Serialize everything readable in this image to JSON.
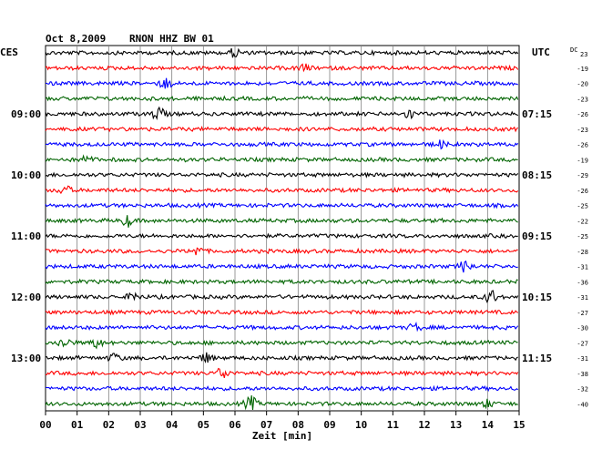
{
  "header": {
    "date": "Oct 8,2009",
    "station": "RNON HHZ BW 01",
    "left_zone": "CES",
    "right_zone": "UTC",
    "dc_label": "DC",
    "dc_first": "23"
  },
  "chart_data": {
    "type": "line",
    "title": "Oct 8,2009   RNON HHZ BW 01",
    "xlabel": "Zeit [min]",
    "xlim": [
      0,
      15
    ],
    "x_ticks": [
      "00",
      "01",
      "02",
      "03",
      "04",
      "05",
      "06",
      "07",
      "08",
      "09",
      "10",
      "11",
      "12",
      "13",
      "14",
      "15"
    ],
    "grid": true,
    "trace_colors": [
      "#000000",
      "#ff0000",
      "#0000ff",
      "#006400"
    ],
    "left_time_labels": [
      {
        "row": 4,
        "label": "09:00"
      },
      {
        "row": 8,
        "label": "10:00"
      },
      {
        "row": 12,
        "label": "11:00"
      },
      {
        "row": 16,
        "label": "12:00"
      },
      {
        "row": 20,
        "label": "13:00"
      }
    ],
    "right_time_labels": [
      {
        "row": 4,
        "label": "07:15"
      },
      {
        "row": 8,
        "label": "08:15"
      },
      {
        "row": 12,
        "label": "09:15"
      },
      {
        "row": 16,
        "label": "10:15"
      },
      {
        "row": 20,
        "label": "11:15"
      }
    ],
    "dc_offsets": [
      "-19",
      "-20",
      "-23",
      "-26",
      "-23",
      "-26",
      "-19",
      "-29",
      "-26",
      "-25",
      "-22",
      "-25",
      "-28",
      "-31",
      "-36",
      "-31",
      "-27",
      "-30",
      "-27",
      "-31",
      "-38",
      "-32",
      "-40"
    ],
    "bursts": [
      {
        "row": 0,
        "minute": 6.0,
        "amp": 5
      },
      {
        "row": 1,
        "minute": 8.2,
        "amp": 4
      },
      {
        "row": 2,
        "minute": 3.8,
        "amp": 6
      },
      {
        "row": 4,
        "minute": 3.6,
        "amp": 8
      },
      {
        "row": 4,
        "minute": 11.5,
        "amp": 5
      },
      {
        "row": 6,
        "minute": 12.5,
        "amp": 4
      },
      {
        "row": 7,
        "minute": 1.3,
        "amp": 4
      },
      {
        "row": 9,
        "minute": 0.6,
        "amp": 5
      },
      {
        "row": 11,
        "minute": 2.6,
        "amp": 6
      },
      {
        "row": 13,
        "minute": 4.8,
        "amp": 5
      },
      {
        "row": 14,
        "minute": 13.3,
        "amp": 7
      },
      {
        "row": 16,
        "minute": 2.8,
        "amp": 5
      },
      {
        "row": 16,
        "minute": 14.1,
        "amp": 8
      },
      {
        "row": 18,
        "minute": 11.7,
        "amp": 4
      },
      {
        "row": 19,
        "minute": 0.6,
        "amp": 6
      },
      {
        "row": 19,
        "minute": 1.6,
        "amp": 5
      },
      {
        "row": 20,
        "minute": 2.2,
        "amp": 5
      },
      {
        "row": 20,
        "minute": 5.1,
        "amp": 5
      },
      {
        "row": 21,
        "minute": 5.6,
        "amp": 7
      },
      {
        "row": 23,
        "minute": 6.5,
        "amp": 8
      },
      {
        "row": 23,
        "minute": 14.0,
        "amp": 4
      }
    ],
    "row_count": 24
  }
}
